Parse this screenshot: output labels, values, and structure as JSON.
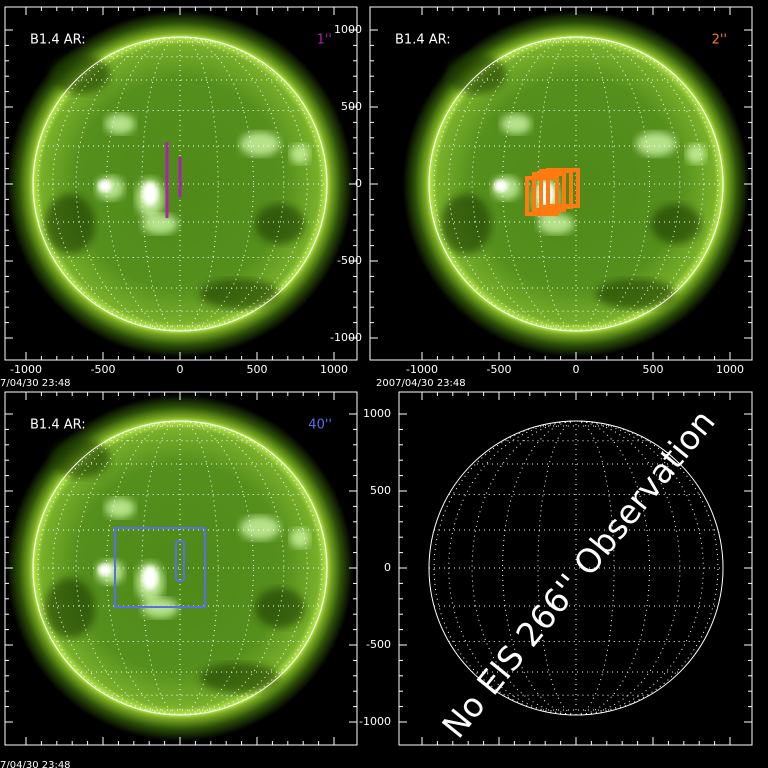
{
  "panels": [
    {
      "label": "B1.4 AR:",
      "slit": "1''",
      "slit_color": "#b020b0",
      "xticks": [
        -1000,
        -500,
        0,
        500,
        1000
      ],
      "timestamp": "7/04/30 23:48"
    },
    {
      "label": "B1.4 AR:",
      "slit": "2''",
      "slit_color": "#ff7a10",
      "xticks": [
        -1000,
        -500,
        0,
        500,
        1000
      ],
      "yticks": [
        1000,
        500,
        0,
        -500,
        -1000
      ],
      "timestamp": "2007/04/30 23:48"
    },
    {
      "label": "B1.4 AR:",
      "slit": "40''",
      "slit_color": "#5a6ee8",
      "timestamp": "7/04/30 23:48"
    },
    {
      "yticks": [
        1000,
        500,
        0,
        -500,
        -1000
      ],
      "message": "No EIS 266'' Observation"
    }
  ]
}
